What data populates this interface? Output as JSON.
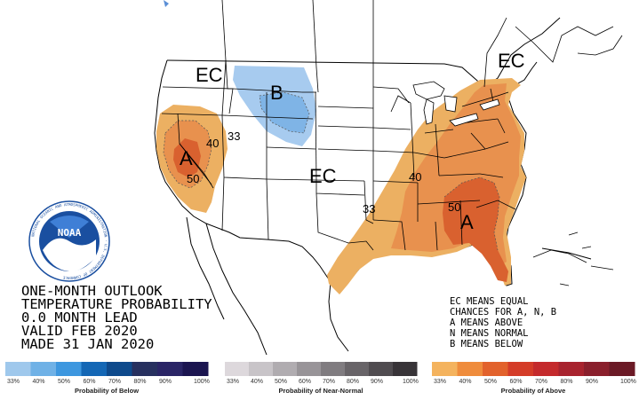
{
  "title_block": {
    "line1": "ONE-MONTH OUTLOOK",
    "line2": "TEMPERATURE PROBABILITY",
    "line3": "0.0 MONTH LEAD",
    "line4": "VALID FEB 2020",
    "line5": "MADE 31 JAN 2020"
  },
  "key_block": {
    "line1": "EC MEANS EQUAL",
    "line2": "CHANCES FOR A, N, B",
    "line3": "A MEANS ABOVE",
    "line4": "N MEANS NORMAL",
    "line5": "B MEANS BELOW"
  },
  "map_labels": {
    "ec_west": "EC",
    "ec_central": "EC",
    "ec_northeast": "EC",
    "b_north": "B",
    "a_west": "A",
    "a_southeast": "A",
    "contour_40_west": "40",
    "contour_33_west": "33",
    "contour_50_west": "50",
    "contour_40_east": "40",
    "contour_33_east": "33",
    "contour_50_east": "50"
  },
  "logo": {
    "name": "NOAA",
    "ring_text": "NATIONAL OCEANIC AND ATMOSPHERIC ADMINISTRATION · U.S. DEPARTMENT OF COMMERCE"
  },
  "legend": {
    "below": {
      "title": "Probability of Below",
      "labels": [
        "33%",
        "40%",
        "50%",
        "60%",
        "70%",
        "80%",
        "90%",
        "100%"
      ],
      "colors": [
        "#9fc8ec",
        "#6fb1e6",
        "#3d97df",
        "#1467b5",
        "#0e4a8c",
        "#27305f",
        "#2a2566",
        "#1b1550"
      ]
    },
    "normal": {
      "title": "Probability of Near-Normal",
      "labels": [
        "33%",
        "40%",
        "50%",
        "60%",
        "70%",
        "80%",
        "90%",
        "100%"
      ],
      "colors": [
        "#ddd8dc",
        "#c8c4c8",
        "#b0acb0",
        "#989498",
        "#807c80",
        "#686468",
        "#504c50",
        "#383438"
      ]
    },
    "above": {
      "title": "Probability of Above",
      "labels": [
        "33%",
        "40%",
        "50%",
        "60%",
        "70%",
        "80%",
        "90%",
        "100%"
      ],
      "colors": [
        "#f4b35e",
        "#ef8c3c",
        "#e2622c",
        "#d43c28",
        "#c42a2c",
        "#a8232e",
        "#8a1f2c",
        "#6b1a26"
      ]
    }
  },
  "colors": {
    "above_33": "#ecb062",
    "above_40": "#e8914e",
    "above_50": "#d9612f",
    "below_33": "#a7cbef",
    "below_40": "#7fb4e6",
    "noaa_blue": "#1a4fa0"
  }
}
